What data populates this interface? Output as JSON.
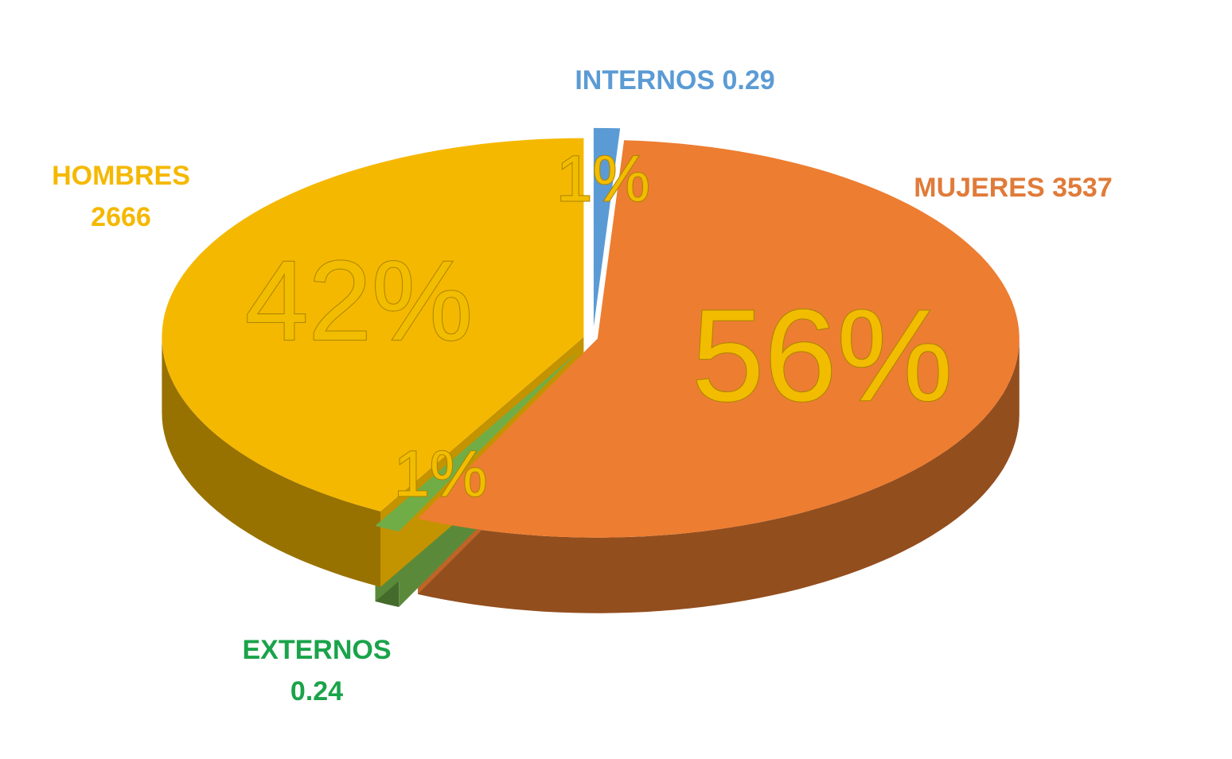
{
  "chart_data": {
    "type": "pie3d",
    "categories": [
      "INTERNOS",
      "MUJERES",
      "EXTERNOS",
      "HOMBRES"
    ],
    "counts": [
      0.29,
      3537,
      0.24,
      2666
    ],
    "values": [
      1,
      56,
      1,
      42
    ],
    "value_labels": [
      "1%",
      "56%",
      "1%",
      "42%"
    ],
    "colors": [
      "#5b9bd5",
      "#ed7d31",
      "#70ad47",
      "#f5b800"
    ],
    "label_colors": [
      "#5b9bd5",
      "#e07b39",
      "#1aa34a",
      "#f5b800"
    ],
    "value_label_color": "#f2bc00"
  }
}
